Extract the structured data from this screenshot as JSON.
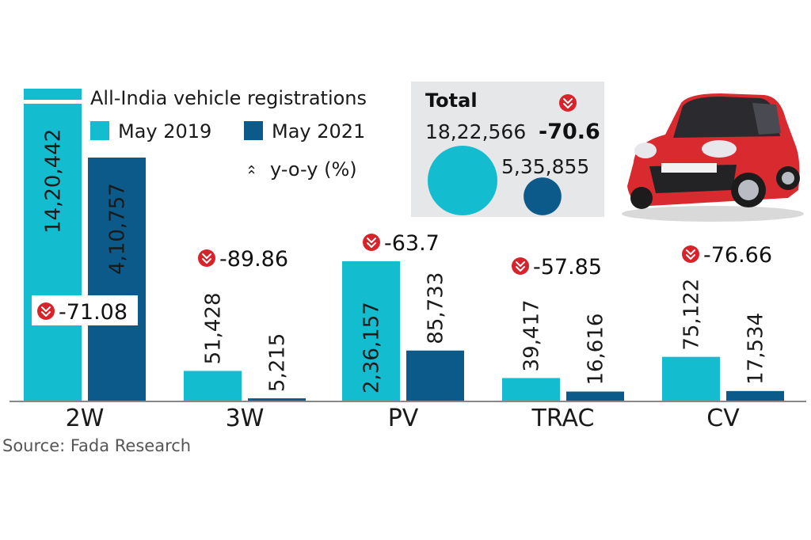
{
  "chart_data": {
    "type": "bar",
    "title": "All-India vehicle registrations",
    "xlabel": "",
    "ylabel": "",
    "categories": [
      "2W",
      "3W",
      "PV",
      "TRAC",
      "CV"
    ],
    "series": [
      {
        "name": "May 2019",
        "color": "#14bccf",
        "values": [
          1420442,
          51428,
          236157,
          39417,
          75122
        ],
        "labels": [
          "14,20,442",
          "51,428",
          "2,36,157",
          "39,417",
          "75,122"
        ]
      },
      {
        "name": "May 2021",
        "color": "#0b5a8a",
        "values": [
          410757,
          5215,
          85733,
          16616,
          17534
        ],
        "labels": [
          "4,10,757",
          "5,215",
          "85,733",
          "16,616",
          "17,534"
        ]
      }
    ],
    "yoy_percent": [
      -71.08,
      -89.86,
      -63.7,
      -57.85,
      -76.66
    ],
    "yoy_labels": [
      "-71.08",
      "-89.86",
      "-63.7",
      "-57.85",
      "-76.66"
    ],
    "yoy_legend": "y-o-y (%)",
    "axis_break": {
      "category": "2W",
      "series": "May 2019"
    },
    "ylim": [
      0,
      410757
    ],
    "grid": false,
    "legend": "top-left",
    "total": {
      "title": "Total",
      "may_2019": 1822566,
      "may_2019_label": "18,22,566",
      "may_2021": 535855,
      "may_2021_label": "5,35,855",
      "yoy_percent": -70.6,
      "yoy_label": "-70.6"
    },
    "source": "Source: Fada Research"
  },
  "colors": {
    "may_2019": "#14bccf",
    "may_2021": "#0b5a8a",
    "down_badge": "#d8232a",
    "total_panel": "#e6e7e9",
    "axis": "#888888"
  },
  "image": {
    "description": "red Maruti Suzuki hatchback car photo"
  }
}
